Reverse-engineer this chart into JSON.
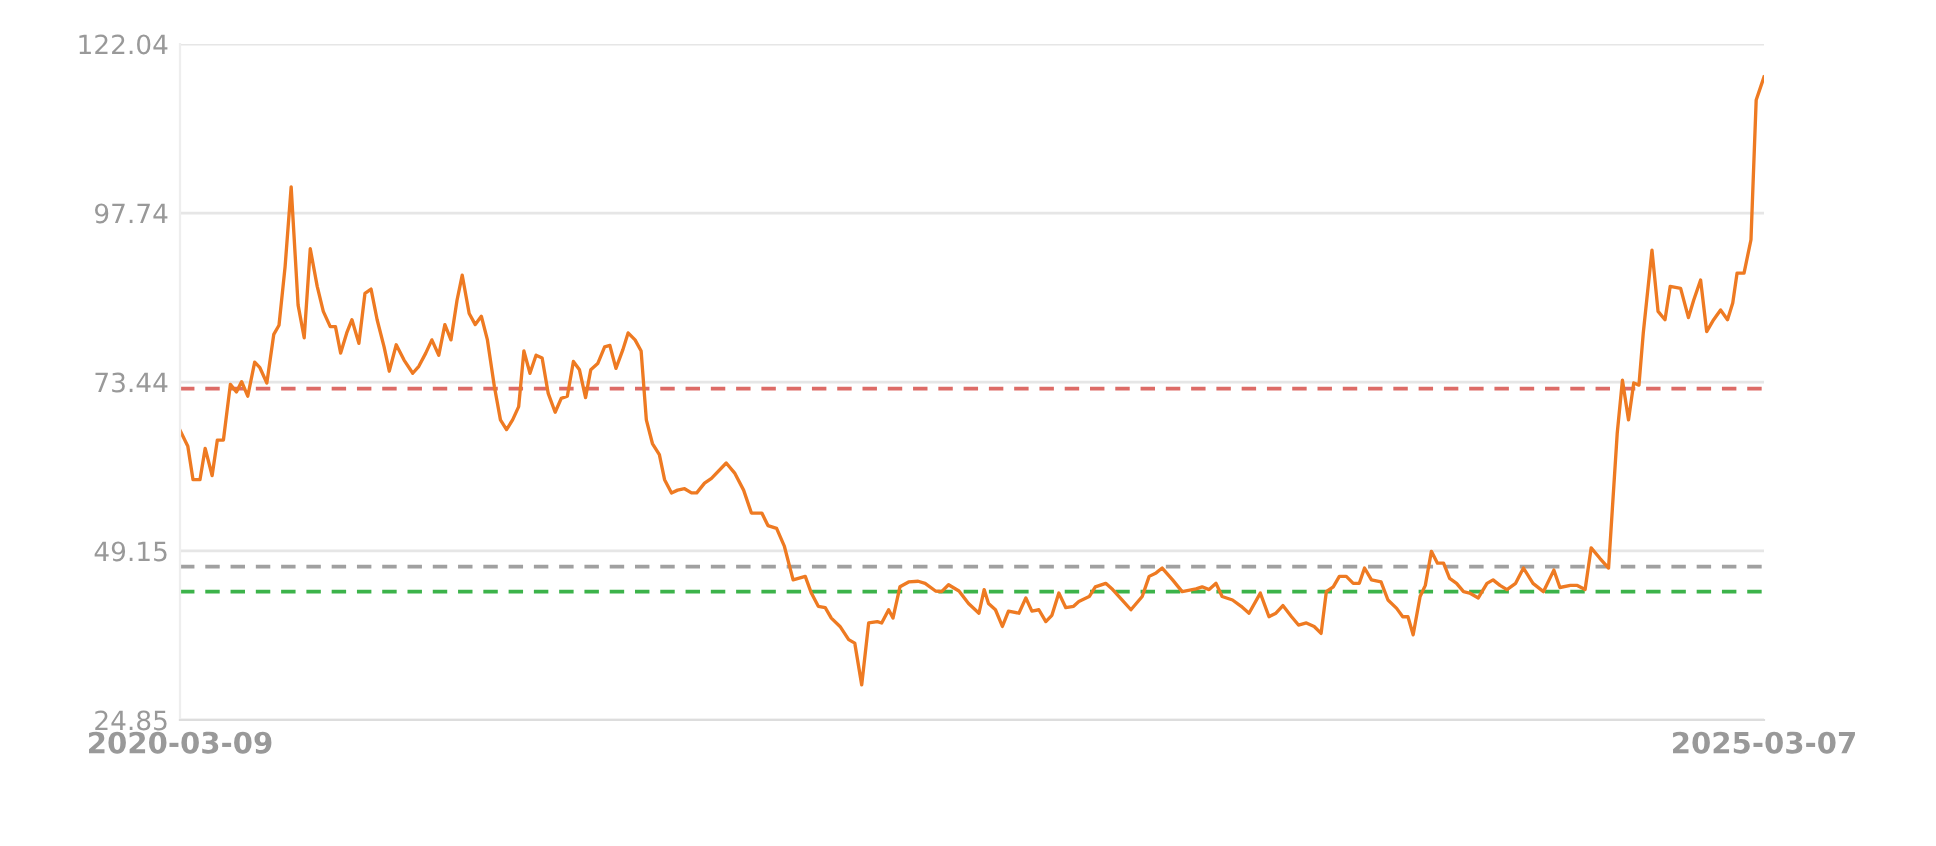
{
  "chart_data": {
    "type": "line",
    "x": [
      "2020-03-09",
      "2020-03-18",
      "2020-03-24",
      "2020-04-01",
      "2020-04-07",
      "2020-04-15",
      "2020-04-21",
      "2020-04-28",
      "2020-05-06",
      "2020-05-13",
      "2020-05-19",
      "2020-05-26",
      "2020-06-03",
      "2020-06-09",
      "2020-06-17",
      "2020-06-25",
      "2020-07-01",
      "2020-07-08",
      "2020-07-15",
      "2020-07-23",
      "2020-07-30",
      "2020-08-06",
      "2020-08-14",
      "2020-08-21",
      "2020-08-29",
      "2020-09-04",
      "2020-09-10",
      "2020-09-17",
      "2020-09-23",
      "2020-10-01",
      "2020-10-08",
      "2020-10-15",
      "2020-10-22",
      "2020-10-30",
      "2020-11-05",
      "2020-11-13",
      "2020-11-22",
      "2020-12-02",
      "2020-12-09",
      "2020-12-17",
      "2020-12-24",
      "2021-01-01",
      "2021-01-08",
      "2021-01-15",
      "2021-01-22",
      "2021-01-28",
      "2021-02-05",
      "2021-02-12",
      "2021-02-19",
      "2021-02-26",
      "2021-03-06",
      "2021-03-13",
      "2021-03-20",
      "2021-03-27",
      "2021-04-03",
      "2021-04-09",
      "2021-04-16",
      "2021-04-23",
      "2021-04-30",
      "2021-05-07",
      "2021-05-15",
      "2021-05-22",
      "2021-05-29",
      "2021-06-05",
      "2021-06-12",
      "2021-06-19",
      "2021-06-25",
      "2021-07-03",
      "2021-07-11",
      "2021-07-17",
      "2021-07-24",
      "2021-08-01",
      "2021-08-07",
      "2021-08-15",
      "2021-08-22",
      "2021-08-28",
      "2021-09-04",
      "2021-09-12",
      "2021-09-18",
      "2021-09-26",
      "2021-10-03",
      "2021-10-11",
      "2021-10-19",
      "2021-10-25",
      "2021-11-03",
      "2021-11-11",
      "2021-11-28",
      "2021-12-08",
      "2021-12-18",
      "2021-12-27",
      "2022-01-08",
      "2022-01-15",
      "2022-01-25",
      "2022-02-03",
      "2022-02-13",
      "2022-02-27",
      "2022-03-06",
      "2022-03-14",
      "2022-03-22",
      "2022-03-29",
      "2022-04-08",
      "2022-04-18",
      "2022-04-25",
      "2022-05-03",
      "2022-05-11",
      "2022-05-21",
      "2022-05-26",
      "2022-06-03",
      "2022-06-08",
      "2022-06-16",
      "2022-06-26",
      "2022-07-07",
      "2022-07-15",
      "2022-07-27",
      "2022-08-03",
      "2022-08-11",
      "2022-08-23",
      "2022-09-03",
      "2022-09-15",
      "2022-09-21",
      "2022-09-26",
      "2022-10-04",
      "2022-10-12",
      "2022-10-19",
      "2022-10-31",
      "2022-11-08",
      "2022-11-15",
      "2022-11-23",
      "2022-12-01",
      "2022-12-08",
      "2022-12-16",
      "2022-12-24",
      "2023-01-02",
      "2023-01-08",
      "2023-01-20",
      "2023-01-27",
      "2023-02-08",
      "2023-02-16",
      "2023-02-27",
      "2023-03-09",
      "2023-03-22",
      "2023-03-30",
      "2023-04-07",
      "2023-04-14",
      "2023-04-26",
      "2023-05-07",
      "2023-05-23",
      "2023-05-30",
      "2023-06-07",
      "2023-06-15",
      "2023-06-22",
      "2023-07-04",
      "2023-07-14",
      "2023-07-23",
      "2023-08-05",
      "2023-08-15",
      "2023-08-23",
      "2023-08-31",
      "2023-09-10",
      "2023-09-18",
      "2023-09-27",
      "2023-10-06",
      "2023-10-14",
      "2023-10-20",
      "2023-10-28",
      "2023-11-04",
      "2023-11-12",
      "2023-11-20",
      "2023-11-27",
      "2023-12-03",
      "2023-12-11",
      "2023-12-22",
      "2023-12-30",
      "2024-01-09",
      "2024-01-16",
      "2024-01-22",
      "2024-01-28",
      "2024-02-05",
      "2024-02-11",
      "2024-02-18",
      "2024-02-25",
      "2024-03-03",
      "2024-03-10",
      "2024-03-18",
      "2024-03-26",
      "2024-04-02",
      "2024-04-12",
      "2024-04-22",
      "2024-04-29",
      "2024-05-07",
      "2024-05-15",
      "2024-05-25",
      "2024-06-03",
      "2024-06-14",
      "2024-06-26",
      "2024-07-08",
      "2024-07-15",
      "2024-07-27",
      "2024-08-04",
      "2024-08-13",
      "2024-08-20",
      "2024-08-30",
      "2024-09-09",
      "2024-09-19",
      "2024-09-25",
      "2024-10-02",
      "2024-10-08",
      "2024-10-14",
      "2024-10-19",
      "2024-10-29",
      "2024-11-05",
      "2024-11-13",
      "2024-11-19",
      "2024-12-01",
      "2024-12-10",
      "2024-12-16",
      "2024-12-24",
      "2024-12-31",
      "2025-01-08",
      "2025-01-16",
      "2025-01-24",
      "2025-01-30",
      "2025-02-04",
      "2025-02-12",
      "2025-02-20",
      "2025-02-26",
      "2025-03-07"
    ],
    "series": [
      {
        "color": "#ee7a22",
        "values": [
          66.5,
          64.2,
          59.4,
          59.4,
          63.9,
          60.0,
          65.1,
          65.1,
          73.1,
          72.0,
          73.5,
          71.4,
          76.3,
          75.5,
          73.3,
          80.3,
          81.6,
          90.0,
          101.5,
          84.5,
          79.8,
          92.6,
          87.2,
          83.6,
          81.4,
          81.4,
          77.6,
          80.5,
          82.4,
          79.0,
          86.2,
          86.8,
          82.4,
          78.5,
          75.0,
          78.8,
          76.6,
          74.7,
          75.7,
          77.6,
          79.5,
          77.3,
          81.7,
          79.5,
          85.2,
          88.8,
          83.3,
          81.7,
          82.9,
          79.5,
          72.8,
          68.0,
          66.6,
          68.0,
          69.9,
          77.9,
          74.7,
          77.3,
          76.9,
          71.8,
          69.1,
          71.1,
          71.4,
          76.4,
          75.2,
          71.2,
          75.2,
          76.1,
          78.5,
          78.7,
          75.4,
          78.1,
          80.5,
          79.5,
          77.9,
          68.0,
          64.6,
          63.0,
          59.4,
          57.5,
          57.9,
          58.1,
          57.5,
          57.5,
          58.9,
          59.6,
          61.8,
          60.3,
          57.9,
          54.6,
          54.6,
          52.8,
          52.4,
          49.8,
          45.0,
          45.5,
          43.1,
          41.2,
          41.0,
          39.5,
          38.3,
          36.4,
          35.9,
          29.9,
          38.8,
          39.0,
          38.8,
          40.7,
          39.5,
          44.0,
          44.7,
          44.8,
          44.5,
          43.4,
          43.3,
          44.3,
          43.4,
          41.6,
          40.2,
          43.6,
          41.6,
          40.7,
          38.3,
          40.5,
          40.2,
          42.4,
          40.5,
          40.7,
          39.0,
          39.9,
          43.1,
          41.0,
          41.2,
          41.9,
          42.6,
          44.0,
          44.5,
          43.6,
          42.1,
          40.7,
          42.6,
          45.5,
          46.0,
          46.7,
          45.0,
          43.3,
          43.7,
          44.0,
          43.6,
          44.5,
          42.6,
          42.1,
          41.2,
          40.2,
          43.1,
          39.7,
          40.2,
          41.3,
          39.7,
          38.5,
          38.8,
          38.3,
          37.3,
          43.3,
          44.0,
          45.5,
          45.5,
          44.5,
          44.5,
          46.7,
          45.0,
          44.7,
          42.1,
          40.9,
          39.7,
          39.7,
          37.1,
          42.6,
          44.2,
          49.1,
          47.4,
          47.4,
          45.2,
          44.5,
          43.3,
          43.1,
          42.4,
          44.5,
          45.0,
          44.2,
          43.6,
          44.5,
          46.7,
          44.5,
          43.3,
          46.4,
          43.9,
          44.2,
          44.2,
          43.6,
          49.6,
          48.1,
          46.7,
          66.1,
          73.7,
          68.0,
          73.3,
          73.0,
          80.5,
          92.4,
          83.6,
          82.4,
          87.2,
          86.9,
          82.7,
          85.2,
          88.1,
          80.7,
          82.4,
          83.8,
          82.4,
          84.8,
          89.1,
          89.1,
          93.9,
          114.0,
          117.3
        ]
      }
    ],
    "xlim": [
      "2020-03-09",
      "2025-03-07"
    ],
    "xticks": [
      "2020-03-09",
      "2025-03-07"
    ],
    "ylim": [
      24.85,
      122.04
    ],
    "yticks": [
      24.85,
      49.15,
      73.44,
      97.74,
      122.04
    ],
    "grid": "y",
    "legend": false,
    "marker": "none",
    "line_style": "solid",
    "ref_lines": [
      {
        "axis": "y",
        "value": 72.5,
        "color": "#dd6b66",
        "line_style": "dashed"
      },
      {
        "axis": "y",
        "value": 46.9,
        "color": "#a0a0a0",
        "line_style": "dashed"
      },
      {
        "axis": "y",
        "value": 43.3,
        "color": "#3cb34a",
        "line_style": "dashed"
      }
    ]
  }
}
